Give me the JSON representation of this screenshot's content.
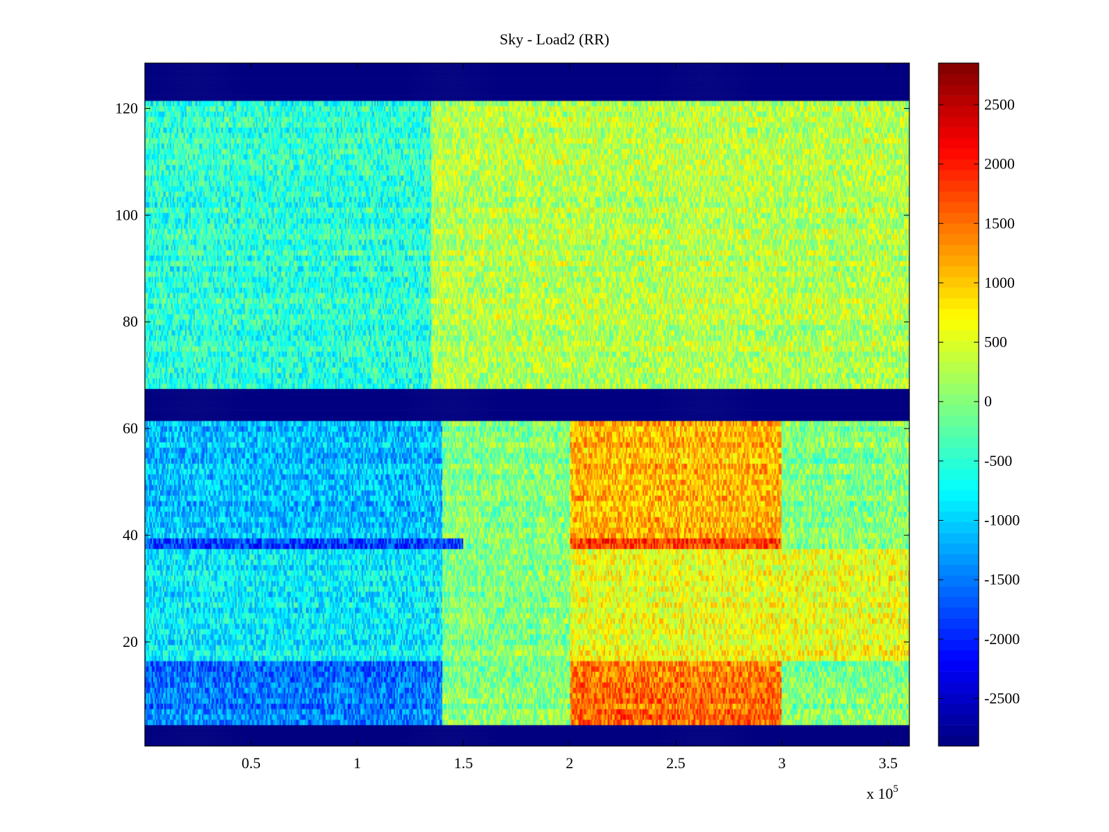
{
  "chart_data": {
    "type": "heatmap",
    "title": "Sky - Load2 (RR)",
    "xlabel": "",
    "ylabel": "",
    "x_range": [
      0,
      360000
    ],
    "y_range": [
      1,
      128
    ],
    "x_ticks": [
      50000,
      100000,
      150000,
      200000,
      250000,
      300000,
      350000
    ],
    "x_tick_labels": [
      "0.5",
      "1",
      "1.5",
      "2",
      "2.5",
      "3",
      "3.5"
    ],
    "x_exponent_label": "x 10",
    "x_exponent_power": "5",
    "y_ticks": [
      20,
      40,
      60,
      80,
      100,
      120
    ],
    "y_tick_labels": [
      "20",
      "40",
      "60",
      "80",
      "100",
      "120"
    ],
    "colorbar": {
      "colormap": "jet",
      "range": [
        -2900,
        2850
      ],
      "ticks": [
        -2500,
        -2000,
        -1500,
        -1000,
        -500,
        0,
        500,
        1000,
        1500,
        2000,
        2500
      ],
      "tick_labels": [
        "-2500",
        "-2000",
        "-1500",
        "-1000",
        "-500",
        "0",
        "500",
        "1000",
        "1500",
        "2000",
        "2500"
      ]
    },
    "masked_rows": [
      [
        1,
        4
      ],
      [
        62,
        67
      ],
      [
        122,
        128
      ]
    ],
    "regions": [
      {
        "rows": [
          5,
          16
        ],
        "x_range": [
          0,
          140000
        ],
        "value": -1500
      },
      {
        "rows": [
          5,
          16
        ],
        "x_range": [
          200000,
          300000
        ],
        "value": 1500
      },
      {
        "rows": [
          17,
          37
        ],
        "x_range": [
          0,
          140000
        ],
        "value": -800
      },
      {
        "rows": [
          17,
          37
        ],
        "x_range": [
          200000,
          360000
        ],
        "value": 600
      },
      {
        "rows": [
          38,
          39
        ],
        "x_range": [
          0,
          150000
        ],
        "value": -1800
      },
      {
        "rows": [
          38,
          39
        ],
        "x_range": [
          200000,
          300000
        ],
        "value": 1800
      },
      {
        "rows": [
          40,
          61
        ],
        "x_range": [
          0,
          140000
        ],
        "value": -1100
      },
      {
        "rows": [
          40,
          61
        ],
        "x_range": [
          200000,
          300000
        ],
        "value": 1100
      },
      {
        "rows": [
          68,
          121
        ],
        "x_range": [
          0,
          135000
        ],
        "value": -500
      },
      {
        "rows": [
          68,
          121
        ],
        "x_range": [
          135000,
          360000
        ],
        "value": 300
      }
    ],
    "grid": false,
    "legend": "none"
  }
}
